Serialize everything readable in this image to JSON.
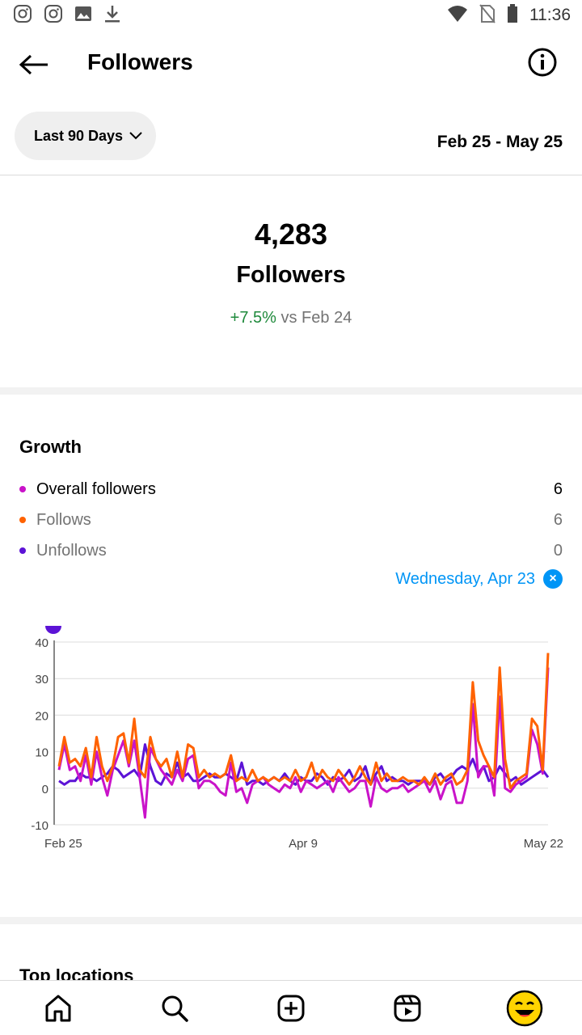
{
  "status_bar": {
    "time": "11:36",
    "left_icons": [
      "instagram-icon",
      "instagram-icon",
      "image-icon",
      "download-icon"
    ],
    "right_icons": [
      "wifi-icon",
      "no-sim-icon",
      "battery-icon"
    ]
  },
  "header": {
    "title": "Followers"
  },
  "filter": {
    "range_label": "Last 90 Days",
    "date_range": "Feb 25 - May 25"
  },
  "summary": {
    "count": "4,283",
    "label": "Followers",
    "change": "+7.5%",
    "change_suffix": " vs Feb 24"
  },
  "growth": {
    "title": "Growth",
    "legend": [
      {
        "label": "Overall followers",
        "value": "6",
        "color": "#c913c9"
      },
      {
        "label": "Follows",
        "value": "6",
        "color": "#ff6200"
      },
      {
        "label": "Unfollows",
        "value": "0",
        "color": "#5c13d6"
      }
    ],
    "selected_date": "Wednesday, Apr 23"
  },
  "chart_data": {
    "type": "line",
    "ylim": [
      -10,
      40
    ],
    "yticks": [
      "40",
      "30",
      "20",
      "10",
      "0",
      "-10"
    ],
    "xticks": [
      "Feb 25",
      "Apr 9",
      "May 22"
    ],
    "series": [
      {
        "name": "Overall followers",
        "color": "#c913c9",
        "values": [
          5,
          12,
          5,
          6,
          2,
          9,
          1,
          10,
          3,
          -2,
          5,
          9,
          13,
          6,
          13,
          3,
          -8,
          11,
          8,
          5,
          3,
          1,
          5,
          2,
          8,
          9,
          0,
          2,
          2,
          1,
          -1,
          -2,
          7,
          -1,
          0,
          -4,
          1,
          2,
          3,
          1,
          0,
          -1,
          1,
          0,
          3,
          -1,
          2,
          1,
          0,
          1,
          2,
          -1,
          3,
          1,
          -1,
          0,
          2,
          2,
          -5,
          3,
          0,
          -1,
          0,
          0,
          1,
          -1,
          0,
          1,
          2,
          -1,
          2,
          -3,
          1,
          2,
          -4,
          -4,
          2,
          23,
          3,
          6,
          6,
          -2,
          25,
          0,
          -1,
          1,
          2,
          3,
          16,
          12,
          4,
          33
        ]
      },
      {
        "name": "Follows",
        "color": "#ff6200",
        "values": [
          6,
          14,
          7,
          8,
          6,
          11,
          3,
          14,
          6,
          2,
          6,
          14,
          15,
          7,
          19,
          5,
          3,
          14,
          8,
          6,
          8,
          3,
          10,
          3,
          12,
          11,
          3,
          5,
          3,
          4,
          3,
          4,
          9,
          2,
          3,
          2,
          5,
          2,
          3,
          2,
          3,
          2,
          3,
          2,
          5,
          2,
          3,
          7,
          2,
          5,
          3,
          2,
          5,
          3,
          1,
          3,
          6,
          3,
          1,
          7,
          2,
          4,
          2,
          2,
          3,
          2,
          2,
          1,
          3,
          1,
          4,
          1,
          3,
          4,
          1,
          2,
          5,
          29,
          13,
          9,
          6,
          3,
          33,
          8,
          0,
          2,
          3,
          4,
          19,
          17,
          5,
          37
        ]
      },
      {
        "name": "Unfollows",
        "color": "#5c13d6",
        "values": [
          2,
          1,
          2,
          2,
          4,
          3,
          3,
          2,
          3,
          4,
          6,
          5,
          3,
          4,
          5,
          3,
          12,
          6,
          2,
          1,
          4,
          3,
          7,
          3,
          4,
          2,
          2,
          3,
          4,
          3,
          3,
          4,
          3,
          2,
          7,
          1,
          2,
          2,
          1,
          2,
          3,
          2,
          4,
          2,
          1,
          3,
          2,
          2,
          4,
          3,
          1,
          3,
          2,
          3,
          5,
          2,
          3,
          6,
          1,
          4,
          6,
          2,
          3,
          2,
          2,
          1,
          2,
          2,
          2,
          1,
          3,
          4,
          2,
          3,
          5,
          6,
          5,
          8,
          4,
          6,
          2,
          3,
          6,
          4,
          2,
          3,
          1,
          2,
          3,
          4,
          5,
          3
        ]
      }
    ]
  },
  "locations": {
    "title": "Top locations"
  }
}
